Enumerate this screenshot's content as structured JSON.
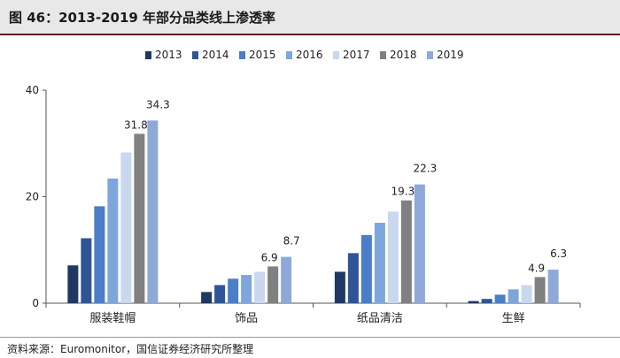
{
  "title": "图 46：2013-2019 年部分品类线上渗透率",
  "source": "资料来源：Euromonitor，国信证券经济研究所整理",
  "chart_data": {
    "type": "bar",
    "categories": [
      "服装鞋帽",
      "饰品",
      "纸品清洁",
      "生鲜"
    ],
    "series": [
      {
        "name": "2013",
        "color": "#1f3864",
        "values": [
          7.1,
          2.1,
          5.9,
          0.4
        ]
      },
      {
        "name": "2014",
        "color": "#2f5597",
        "values": [
          12.2,
          3.4,
          9.4,
          0.8
        ]
      },
      {
        "name": "2015",
        "color": "#4a7ec8",
        "values": [
          18.2,
          4.6,
          12.8,
          1.6
        ]
      },
      {
        "name": "2016",
        "color": "#7ea6dc",
        "values": [
          23.4,
          5.3,
          15.1,
          2.6
        ]
      },
      {
        "name": "2017",
        "color": "#c9d8ef",
        "values": [
          28.3,
          5.9,
          17.2,
          3.4
        ]
      },
      {
        "name": "2018",
        "color": "#808080",
        "values": [
          31.8,
          6.9,
          19.3,
          4.9
        ]
      },
      {
        "name": "2019",
        "color": "#8ea9d8",
        "values": [
          34.3,
          8.7,
          22.3,
          6.3
        ]
      }
    ],
    "data_labels": [
      {
        "category": 0,
        "series": 5,
        "text": "31.8"
      },
      {
        "category": 0,
        "series": 6,
        "text": "34.3"
      },
      {
        "category": 1,
        "series": 5,
        "text": "6.9"
      },
      {
        "category": 1,
        "series": 6,
        "text": "8.7"
      },
      {
        "category": 2,
        "series": 5,
        "text": "19.3"
      },
      {
        "category": 2,
        "series": 6,
        "text": "22.3"
      },
      {
        "category": 3,
        "series": 5,
        "text": "4.9"
      },
      {
        "category": 3,
        "series": 6,
        "text": "6.3"
      }
    ],
    "yticks": [
      0,
      20,
      40
    ],
    "ylim": [
      0,
      40
    ],
    "grid": false,
    "legend_position": "top"
  }
}
